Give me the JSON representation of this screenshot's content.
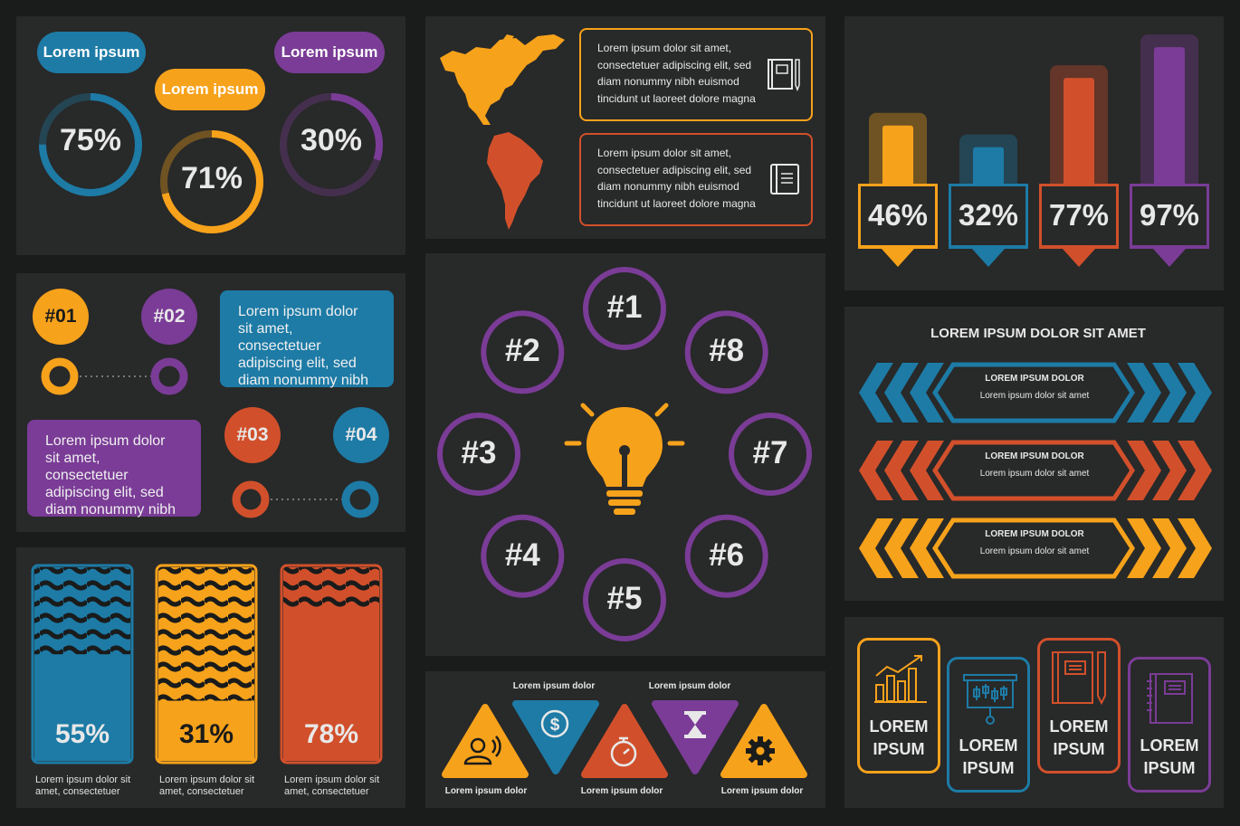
{
  "colors": {
    "blue": "#1d7ba6",
    "orange": "#f7a21b",
    "purple": "#7a3c96",
    "red": "#d1502b",
    "bg": "#282929"
  },
  "donuts": {
    "pills": [
      "Lorem ipsum",
      "Lorem ipsum",
      "Lorem ipsum"
    ],
    "items": [
      {
        "label": "75%",
        "value": 0.75,
        "color": "#1d7ba6"
      },
      {
        "label": "71%",
        "value": 0.71,
        "color": "#f7a21b"
      },
      {
        "label": "30%",
        "value": 0.3,
        "color": "#7a3c96"
      }
    ]
  },
  "timeline": {
    "steps": [
      "#01",
      "#02",
      "#03",
      "#04"
    ],
    "text1": "Lorem ipsum dolor sit amet, consectetuer adipiscing elit, sed diam nonummy nibh",
    "text2": "Lorem ipsum dolor sit amet, consectetuer adipiscing elit, sed diam nonummy nibh"
  },
  "wavebars": {
    "items": [
      {
        "label": "55%",
        "value": 0.55,
        "color": "#1d7ba6",
        "caption": "Lorem ipsum dolor sit amet, consectetuer"
      },
      {
        "label": "31%",
        "value": 0.31,
        "color": "#f7a21b",
        "caption": "Lorem ipsum dolor sit amet, consectetuer"
      },
      {
        "label": "78%",
        "value": 0.78,
        "color": "#d1502b",
        "caption": "Lorem ipsum dolor sit amet, consectetuer"
      }
    ]
  },
  "map": {
    "box1": "Lorem ipsum dolor sit amet, consectetuer adipiscing elit, sed diam nonummy nibh euismod tincidunt ut laoreet dolore magna",
    "box2": "Lorem ipsum dolor sit amet, consectetuer adipiscing elit, sed diam nonummy nibh euismod tincidunt ut laoreet dolore magna"
  },
  "ideas": {
    "items": [
      "#1",
      "#2",
      "#3",
      "#4",
      "#5",
      "#6",
      "#7",
      "#8"
    ]
  },
  "triangles": {
    "top_labels": [
      "Lorem ipsum dolor",
      "Lorem ipsum dolor"
    ],
    "bottom_labels": [
      "Lorem ipsum dolor",
      "Lorem ipsum dolor",
      "Lorem ipsum dolor"
    ],
    "icons": [
      "user-voice-icon",
      "dollar-icon",
      "stopwatch-icon",
      "hourglass-icon",
      "gear-icon"
    ]
  },
  "pins": {
    "items": [
      {
        "label": "46%",
        "value": 0.46,
        "color": "#f7a21b"
      },
      {
        "label": "32%",
        "value": 0.32,
        "color": "#1d7ba6"
      },
      {
        "label": "77%",
        "value": 0.77,
        "color": "#d1502b"
      },
      {
        "label": "97%",
        "value": 0.97,
        "color": "#7a3c96"
      }
    ]
  },
  "chevrons": {
    "title": "LOREM IPSUM DOLOR SIT AMET",
    "items": [
      {
        "heading": "LOREM IPSUM DOLOR",
        "text": "Lorem ipsum dolor sit amet",
        "color": "#1d7ba6"
      },
      {
        "heading": "LOREM IPSUM DOLOR",
        "text": "Lorem ipsum dolor sit amet",
        "color": "#d1502b"
      },
      {
        "heading": "LOREM IPSUM DOLOR",
        "text": "Lorem ipsum dolor sit amet",
        "color": "#f7a21b"
      }
    ]
  },
  "cards": {
    "items": [
      {
        "l1": "LOREM",
        "l2": "IPSUM",
        "icon": "line-chart-icon",
        "color": "#f7a21b"
      },
      {
        "l1": "LOREM",
        "l2": "IPSUM",
        "icon": "presentation-board-icon",
        "color": "#1d7ba6"
      },
      {
        "l1": "LOREM",
        "l2": "IPSUM",
        "icon": "notebook-pen-icon",
        "color": "#d1502b"
      },
      {
        "l1": "LOREM",
        "l2": "IPSUM",
        "icon": "notebook-icon",
        "color": "#7a3c96"
      }
    ]
  }
}
